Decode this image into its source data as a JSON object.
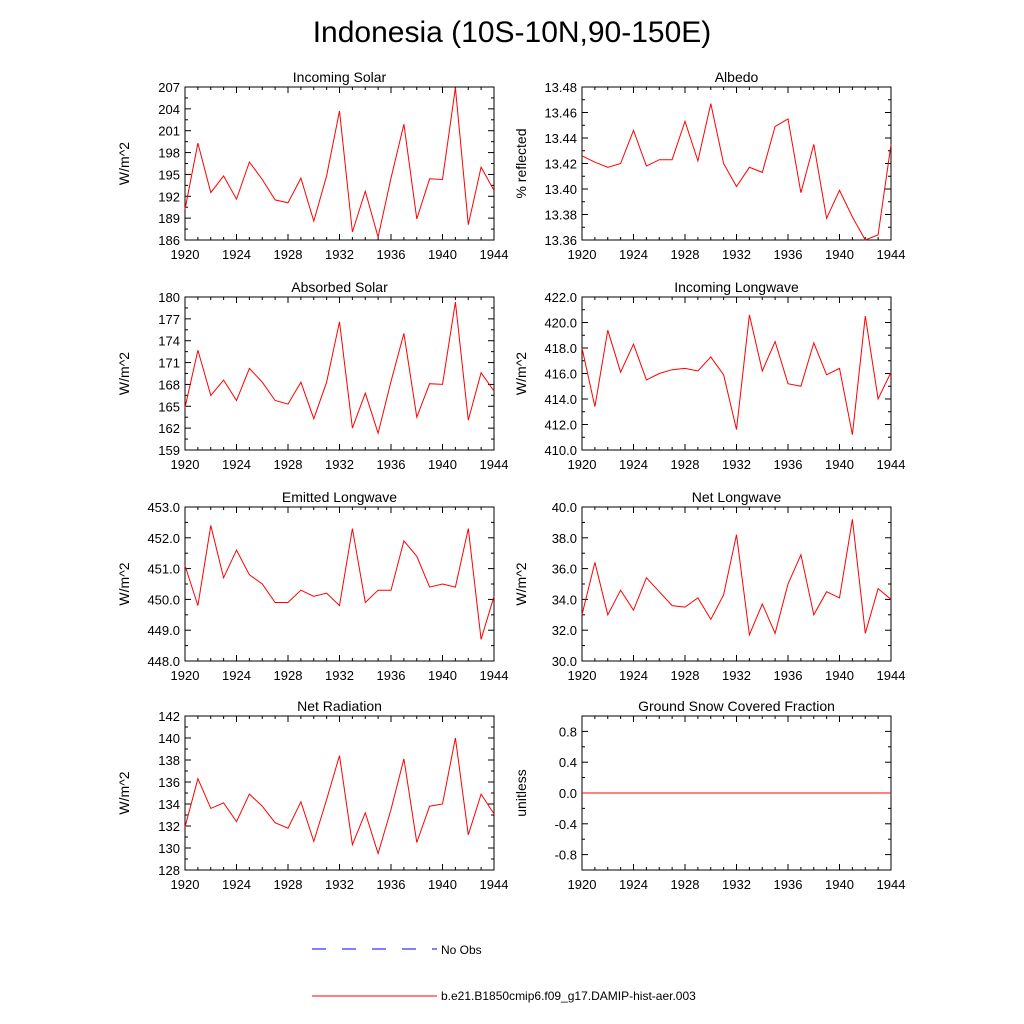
{
  "title": "Indonesia (10S-10N,90-150E)",
  "colors": {
    "model": "#ff0000",
    "obs": "#0000ff",
    "axis": "#000000"
  },
  "legend": {
    "obs_label": "No Obs",
    "model_label": "b.e21.B1850cmip6.f09_g17.DAMIP-hist-aer.003"
  },
  "chart_data": [
    {
      "type": "line",
      "title": "Incoming Solar",
      "ylabel": "W/m^2",
      "xlim": [
        1920,
        1944
      ],
      "ylim": [
        186,
        207
      ],
      "xticks": [
        "1920",
        "1924",
        "1928",
        "1932",
        "1936",
        "1940",
        "1944"
      ],
      "yticks": [
        "186",
        "189",
        "192",
        "195",
        "198",
        "201",
        "204",
        "207"
      ],
      "x": [
        1920,
        1921,
        1922,
        1923,
        1924,
        1925,
        1926,
        1927,
        1928,
        1929,
        1930,
        1931,
        1932,
        1933,
        1934,
        1935,
        1936,
        1937,
        1938,
        1939,
        1940,
        1941,
        1942,
        1943,
        1944
      ],
      "series": [
        {
          "values": [
            190.2,
            199.3,
            192.5,
            194.8,
            191.6,
            196.7,
            194.3,
            191.5,
            191.1,
            194.5,
            188.6,
            194.8,
            203.7,
            187.1,
            192.7,
            186.4,
            194.5,
            201.9,
            188.9,
            194.4,
            194.3,
            206.9,
            188.1,
            196.0,
            192.8
          ]
        }
      ]
    },
    {
      "type": "line",
      "title": "Albedo",
      "ylabel": "% reflected",
      "xlim": [
        1920,
        1944
      ],
      "ylim": [
        13.36,
        13.48
      ],
      "xticks": [
        "1920",
        "1924",
        "1928",
        "1932",
        "1936",
        "1940",
        "1944"
      ],
      "yticks": [
        "13.36",
        "13.38",
        "13.40",
        "13.42",
        "13.44",
        "13.46",
        "13.48"
      ],
      "x": [
        1920,
        1921,
        1922,
        1923,
        1924,
        1925,
        1926,
        1927,
        1928,
        1929,
        1930,
        1931,
        1932,
        1933,
        1934,
        1935,
        1936,
        1937,
        1938,
        1939,
        1940,
        1941,
        1942,
        1943,
        1944
      ],
      "series": [
        {
          "values": [
            13.426,
            13.421,
            13.417,
            13.42,
            13.446,
            13.418,
            13.423,
            13.423,
            13.453,
            13.422,
            13.467,
            13.42,
            13.402,
            13.417,
            13.413,
            13.449,
            13.455,
            13.397,
            13.435,
            13.377,
            13.399,
            13.378,
            13.36,
            13.364,
            13.435
          ]
        }
      ]
    },
    {
      "type": "line",
      "title": "Absorbed Solar",
      "ylabel": "W/m^2",
      "xlim": [
        1920,
        1944
      ],
      "ylim": [
        159,
        180
      ],
      "xticks": [
        "1920",
        "1924",
        "1928",
        "1932",
        "1936",
        "1940",
        "1944"
      ],
      "yticks": [
        "159",
        "162",
        "165",
        "168",
        "171",
        "174",
        "177",
        "180"
      ],
      "x": [
        1920,
        1921,
        1922,
        1923,
        1924,
        1925,
        1926,
        1927,
        1928,
        1929,
        1930,
        1931,
        1932,
        1933,
        1934,
        1935,
        1936,
        1937,
        1938,
        1939,
        1940,
        1941,
        1942,
        1943,
        1944
      ],
      "series": [
        {
          "values": [
            164.8,
            172.7,
            166.5,
            168.6,
            165.8,
            170.2,
            168.3,
            165.8,
            165.3,
            168.3,
            163.3,
            168.3,
            176.6,
            162.0,
            166.8,
            161.3,
            168.4,
            175.0,
            163.5,
            168.1,
            168.0,
            179.3,
            163.1,
            169.6,
            167.1
          ]
        }
      ]
    },
    {
      "type": "line",
      "title": "Incoming Longwave",
      "ylabel": "W/m^2",
      "xlim": [
        1920,
        1944
      ],
      "ylim": [
        410.0,
        422.0
      ],
      "xticks": [
        "1920",
        "1924",
        "1928",
        "1932",
        "1936",
        "1940",
        "1944"
      ],
      "yticks": [
        "410.0",
        "412.0",
        "414.0",
        "416.0",
        "418.0",
        "420.0",
        "422.0"
      ],
      "x": [
        1920,
        1921,
        1922,
        1923,
        1924,
        1925,
        1926,
        1927,
        1928,
        1929,
        1930,
        1931,
        1932,
        1933,
        1934,
        1935,
        1936,
        1937,
        1938,
        1939,
        1940,
        1941,
        1942,
        1943,
        1944
      ],
      "series": [
        {
          "values": [
            418.0,
            413.4,
            419.4,
            416.1,
            418.3,
            415.5,
            416.0,
            416.3,
            416.4,
            416.2,
            417.3,
            415.9,
            411.6,
            420.6,
            416.2,
            418.5,
            415.2,
            415.0,
            418.4,
            415.9,
            416.4,
            411.2,
            420.5,
            414.0,
            416.1
          ]
        }
      ]
    },
    {
      "type": "line",
      "title": "Emitted Longwave",
      "ylabel": "W/m^2",
      "xlim": [
        1920,
        1944
      ],
      "ylim": [
        448.0,
        453.0
      ],
      "xticks": [
        "1920",
        "1924",
        "1928",
        "1932",
        "1936",
        "1940",
        "1944"
      ],
      "yticks": [
        "448.0",
        "449.0",
        "450.0",
        "451.0",
        "452.0",
        "453.0"
      ],
      "x": [
        1920,
        1921,
        1922,
        1923,
        1924,
        1925,
        1926,
        1927,
        1928,
        1929,
        1930,
        1931,
        1932,
        1933,
        1934,
        1935,
        1936,
        1937,
        1938,
        1939,
        1940,
        1941,
        1942,
        1943,
        1944
      ],
      "series": [
        {
          "values": [
            451.1,
            449.8,
            452.4,
            450.7,
            451.6,
            450.8,
            450.5,
            449.9,
            449.9,
            450.3,
            450.1,
            450.2,
            449.8,
            452.3,
            449.9,
            450.3,
            450.3,
            451.9,
            451.4,
            450.4,
            450.5,
            450.4,
            452.3,
            448.7,
            450.1
          ]
        }
      ]
    },
    {
      "type": "line",
      "title": "Net Longwave",
      "ylabel": "W/m^2",
      "xlim": [
        1920,
        1944
      ],
      "ylim": [
        30.0,
        40.0
      ],
      "xticks": [
        "1920",
        "1924",
        "1928",
        "1932",
        "1936",
        "1940",
        "1944"
      ],
      "yticks": [
        "30.0",
        "32.0",
        "34.0",
        "36.0",
        "38.0",
        "40.0"
      ],
      "x": [
        1920,
        1921,
        1922,
        1923,
        1924,
        1925,
        1926,
        1927,
        1928,
        1929,
        1930,
        1931,
        1932,
        1933,
        1934,
        1935,
        1936,
        1937,
        1938,
        1939,
        1940,
        1941,
        1942,
        1943,
        1944
      ],
      "series": [
        {
          "values": [
            33.0,
            36.4,
            33.0,
            34.6,
            33.3,
            35.4,
            34.5,
            33.6,
            33.5,
            34.1,
            32.7,
            34.3,
            38.2,
            31.7,
            33.7,
            31.8,
            35.0,
            36.9,
            33.0,
            34.5,
            34.1,
            39.2,
            31.8,
            34.7,
            34.0
          ]
        }
      ]
    },
    {
      "type": "line",
      "title": "Net Radiation",
      "ylabel": "W/m^2",
      "xlim": [
        1920,
        1944
      ],
      "ylim": [
        128,
        142
      ],
      "xticks": [
        "1920",
        "1924",
        "1928",
        "1932",
        "1936",
        "1940",
        "1944"
      ],
      "yticks": [
        "128",
        "130",
        "132",
        "134",
        "136",
        "138",
        "140",
        "142"
      ],
      "x": [
        1920,
        1921,
        1922,
        1923,
        1924,
        1925,
        1926,
        1927,
        1928,
        1929,
        1930,
        1931,
        1932,
        1933,
        1934,
        1935,
        1936,
        1937,
        1938,
        1939,
        1940,
        1941,
        1942,
        1943,
        1944
      ],
      "series": [
        {
          "values": [
            131.9,
            136.3,
            133.6,
            134.1,
            132.4,
            134.9,
            133.8,
            132.3,
            131.8,
            134.2,
            130.6,
            134.4,
            138.4,
            130.3,
            133.2,
            129.5,
            133.5,
            138.1,
            130.5,
            133.8,
            134.0,
            140.0,
            131.2,
            134.9,
            133.1
          ]
        }
      ]
    },
    {
      "type": "line",
      "title": "Ground Snow Covered Fraction",
      "ylabel": "unitless",
      "xlim": [
        1920,
        1944
      ],
      "ylim": [
        -1.0,
        1.0
      ],
      "xticks": [
        "1920",
        "1924",
        "1928",
        "1932",
        "1936",
        "1940",
        "1944"
      ],
      "yticks": [
        "-0.8",
        "-0.4",
        "0.0",
        "0.4",
        "0.8"
      ],
      "ytick_values": [
        -0.8,
        -0.4,
        0.0,
        0.4,
        0.8
      ],
      "x": [
        1920,
        1944
      ],
      "series": [
        {
          "values": [
            0.0,
            0.0
          ]
        }
      ]
    }
  ]
}
